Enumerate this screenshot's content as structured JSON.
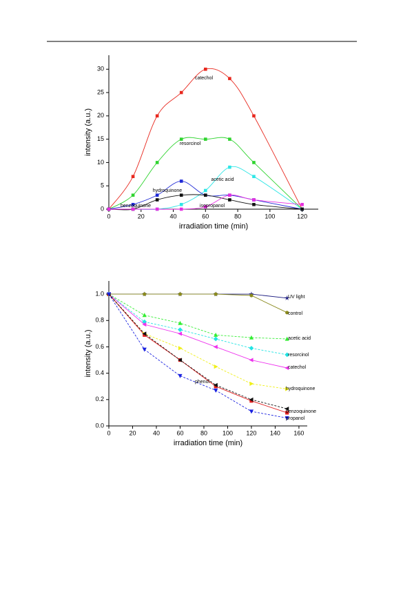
{
  "chart_data": [
    {
      "type": "scatter",
      "smooth": true,
      "x_label": "irradiation time (min)",
      "y_label": "intensity (a.u.)",
      "x": [
        0,
        15,
        30,
        45,
        60,
        75,
        90,
        120
      ],
      "xlim": [
        0,
        130
      ],
      "ylim": [
        0,
        33
      ],
      "xticks": [
        0,
        20,
        40,
        60,
        80,
        100,
        120
      ],
      "yticks": [
        0,
        5,
        10,
        15,
        20,
        25,
        30
      ],
      "series": [
        {
          "name": "catechol",
          "color": "#e8281e",
          "marker": "square",
          "values": [
            0,
            7,
            20,
            25,
            30,
            28,
            20,
            0
          ]
        },
        {
          "name": "resorcinol",
          "color": "#2fd42f",
          "marker": "square",
          "values": [
            0,
            3,
            10,
            15,
            15,
            15,
            10,
            0
          ]
        },
        {
          "name": "acetic acid",
          "color": "#2fe6e6",
          "marker": "square",
          "values": [
            0,
            0,
            0,
            1,
            4,
            9,
            7,
            0
          ]
        },
        {
          "name": "hydroquinone",
          "color": "#1f2ad6",
          "marker": "square",
          "values": [
            0,
            1,
            3,
            6,
            3,
            3,
            2,
            0
          ]
        },
        {
          "name": "benzoquinone",
          "color": "#111111",
          "marker": "square",
          "values": [
            0,
            0,
            2,
            3,
            3,
            2,
            1,
            0
          ]
        },
        {
          "name": "isopropanol",
          "color": "#e62ee0",
          "marker": "square",
          "values": [
            0,
            0,
            0,
            0,
            0.5,
            3,
            2,
            1
          ]
        }
      ]
    },
    {
      "type": "line",
      "x_label": "irradiation time (min)",
      "y_label": "intensity (a.u.)",
      "x": [
        0,
        30,
        60,
        90,
        120,
        150
      ],
      "xlim": [
        0,
        167
      ],
      "ylim": [
        0,
        1.1
      ],
      "xticks": [
        0,
        20,
        40,
        60,
        80,
        100,
        120,
        140,
        160
      ],
      "yticks": [
        {
          "value": 0,
          "label": "0.0"
        },
        {
          "value": 0.2,
          "label": "0.2"
        },
        {
          "value": 0.4,
          "label": "0.4"
        },
        {
          "value": 0.6,
          "label": "0.6"
        },
        {
          "value": 0.8,
          "label": "0.8"
        },
        {
          "value": 1,
          "label": "1.0"
        }
      ],
      "series": [
        {
          "name": "UV light",
          "color": "#1c1c80",
          "marker": "star",
          "dashed": false,
          "values": [
            1,
            1,
            1,
            1,
            1,
            0.97
          ]
        },
        {
          "name": "control",
          "color": "#8a8a1e",
          "marker": "circle",
          "dashed": false,
          "values": [
            1,
            1,
            1,
            1,
            0.99,
            0.86
          ]
        },
        {
          "name": "acetic acid",
          "color": "#33ee33",
          "marker": "triangle-up",
          "dashed": true,
          "values": [
            1,
            0.84,
            0.78,
            0.69,
            0.67,
            0.66
          ]
        },
        {
          "name": "resorcinol",
          "color": "#22e4e4",
          "marker": "diamond",
          "dashed": true,
          "values": [
            1,
            0.79,
            0.73,
            0.66,
            0.59,
            0.54
          ]
        },
        {
          "name": "catechol",
          "color": "#ee33ee",
          "marker": "triangle-left",
          "dashed": false,
          "values": [
            1,
            0.77,
            0.7,
            0.6,
            0.5,
            0.44
          ]
        },
        {
          "name": "hydroquinone",
          "color": "#f0f018",
          "marker": "triangle-right",
          "dashed": true,
          "values": [
            1,
            0.7,
            0.59,
            0.45,
            0.32,
            0.28
          ]
        },
        {
          "name": "phenol",
          "color": "#e01e1e",
          "marker": "square",
          "dashed": false,
          "values": [
            1,
            0.69,
            0.5,
            0.3,
            0.19,
            0.1
          ]
        },
        {
          "name": "benzoquinone",
          "color": "#111111",
          "marker": "triangle-left",
          "dashed": true,
          "values": [
            1,
            0.7,
            0.5,
            0.31,
            0.2,
            0.13
          ]
        },
        {
          "name": "propanol",
          "color": "#1a22e0",
          "marker": "triangle-down",
          "dashed": true,
          "values": [
            1,
            0.58,
            0.38,
            0.27,
            0.11,
            0.06
          ]
        }
      ]
    }
  ]
}
